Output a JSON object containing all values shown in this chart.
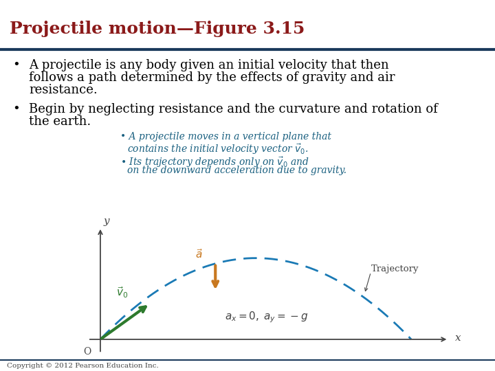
{
  "title": "Projectile motion—Figure 3.15",
  "title_color": "#8B1A1A",
  "title_fontsize": 18,
  "header_line_color": "#1a3a5c",
  "background_color": "#ffffff",
  "bullet_color": "#000000",
  "body_text_color": "#000000",
  "body_fontsize": 13,
  "bullet1_line1": "A projectile is any body given an initial velocity that then",
  "bullet1_line2": "follows a path determined by the effects of gravity and air",
  "bullet1_line3": "resistance.",
  "bullet2_line1": "Begin by neglecting resistance and the curvature and rotation of",
  "bullet2_line2": "the earth.",
  "sub_bullet_color": "#1a6080",
  "sub_bullet_fontsize": 10,
  "sub1_line1": "A projectile moves in a vertical plane that",
  "sub1_line2": "contains the initial velocity vector ",
  "sub2_line1": "Its trajectory depends only on ",
  "sub2_line2": " and",
  "sub2_line3": "on the downward acceleration due to gravity.",
  "footer_text": "Copyright © 2012 Pearson Education Inc.",
  "footer_fontsize": 7.5,
  "traj_color": "#1a7ab5",
  "arrow_v0_color": "#2d7a2d",
  "arrow_a_color": "#c87820",
  "axes_color": "#444444",
  "eq_text_color": "#444444",
  "label_color": "#444444"
}
